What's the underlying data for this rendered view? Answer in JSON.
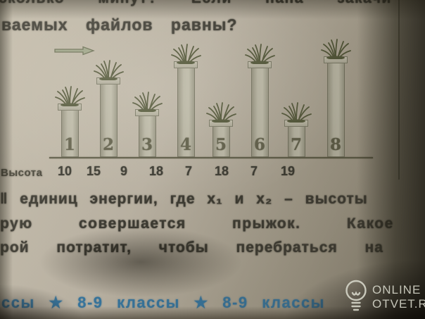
{
  "text": {
    "top_line_clipped": "сколько минут? Если папа закачи",
    "top_line2": "ваемых файлов равны?",
    "body_line1": "‖ единиц энергии, где x₁ и x₂ – высоты",
    "body_line2": "рую совершается прыжок. Какое",
    "body_line3": "рой потратит, чтобы перебраться на",
    "footer_band": "ссы ★ 8-9 классы ★ 8-9 классы"
  },
  "watermark": {
    "line1": "ONLINE",
    "line2": "OTVET.RU",
    "icon": "lightbulb-icon"
  },
  "colors": {
    "paper": "#b7afa0",
    "ink": "#34322a",
    "footer_blue": "#2e6f9a",
    "pillar_fill": "#b0ad9b",
    "grass_green": "#474c2d",
    "watermark_gray": "#d2d2c6"
  },
  "chart_data": {
    "type": "bar",
    "title": "",
    "categories": [
      "1",
      "2",
      "3",
      "4",
      "5",
      "6",
      "7",
      "8"
    ],
    "values": [
      10,
      15,
      9,
      18,
      7,
      18,
      7,
      19
    ],
    "row_label": "Высота",
    "xlabel": "",
    "ylabel": "",
    "ylim": [
      0,
      19
    ],
    "legend": "none",
    "style_note": "stone pillars topped with grass tufts, pillar number printed near base, right-pointing arrow at upper left, height values listed in row under baseline"
  }
}
